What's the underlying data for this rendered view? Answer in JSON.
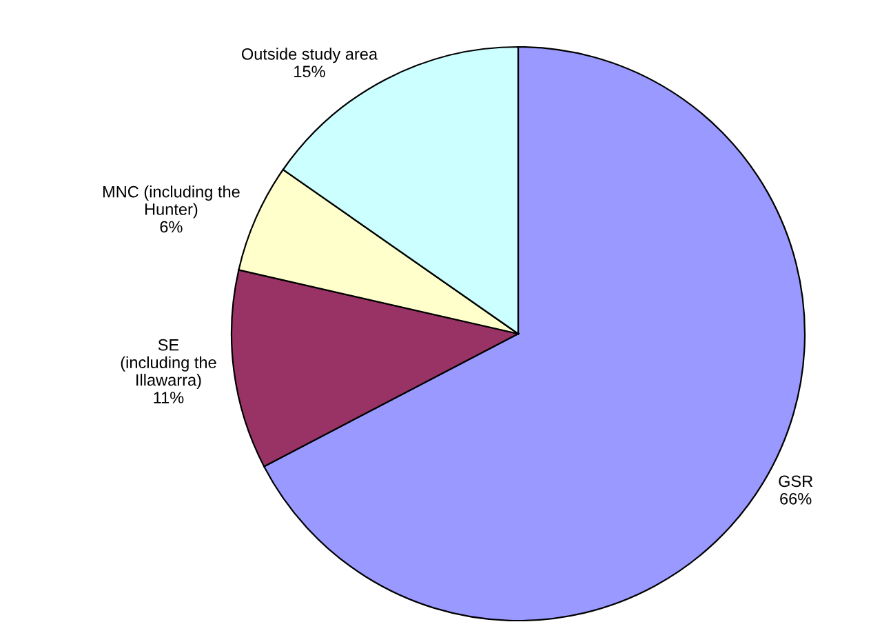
{
  "chart_data": {
    "type": "pie",
    "categories": [
      "GSR",
      "SE\n(including the\nIllawarra)",
      "MNC (including the\nHunter)",
      "Outside study area"
    ],
    "values": [
      66,
      11,
      6,
      15
    ],
    "value_labels": [
      "66%",
      "11%",
      "6%",
      "15%"
    ],
    "colors": [
      "#9999ff",
      "#993366",
      "#ffffcc",
      "#ccffff"
    ],
    "legend": false
  }
}
